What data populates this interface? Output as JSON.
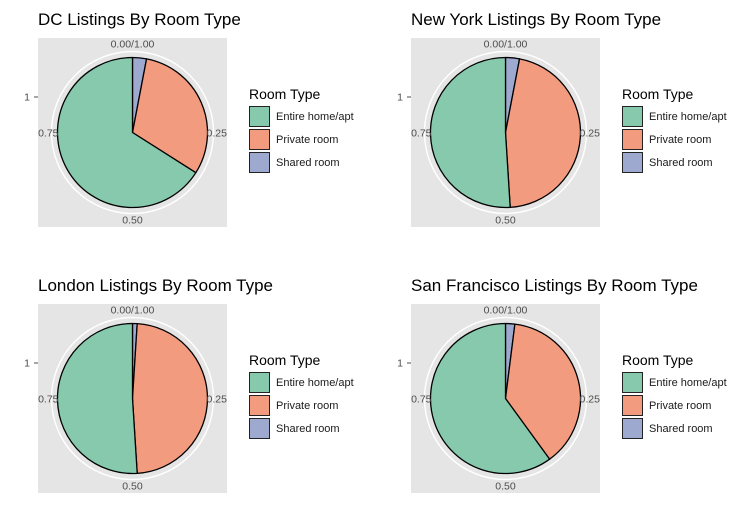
{
  "legend_title": "Room Type",
  "category_colors": [
    "#86c9ad",
    "#f39b7f",
    "#9ea9cf"
  ],
  "axis": {
    "top_label": "0.00/1.00",
    "right_label": "0.25",
    "bottom_label": "0.50",
    "left_label": "0.75",
    "y_label": "1"
  },
  "chart_data": [
    {
      "type": "pie",
      "title": "DC Listings By Room Type",
      "categories": [
        "Entire home/apt",
        "Private room",
        "Shared room"
      ],
      "values": [
        0.66,
        0.31,
        0.03
      ]
    },
    {
      "type": "pie",
      "title": "New York Listings By Room Type",
      "categories": [
        "Entire home/apt",
        "Private room",
        "Shared room"
      ],
      "values": [
        0.51,
        0.46,
        0.03
      ]
    },
    {
      "type": "pie",
      "title": "London Listings By Room Type",
      "categories": [
        "Entire home/apt",
        "Private room",
        "Shared room"
      ],
      "values": [
        0.51,
        0.48,
        0.01
      ]
    },
    {
      "type": "pie",
      "title": "San Francisco Listings By Room Type",
      "categories": [
        "Entire home/apt",
        "Private room",
        "Shared room"
      ],
      "values": [
        0.6,
        0.38,
        0.02
      ]
    }
  ]
}
